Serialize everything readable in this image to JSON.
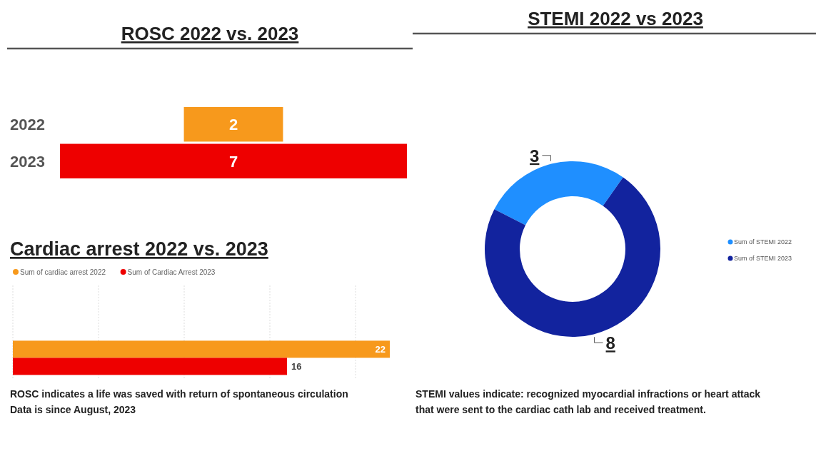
{
  "chart_data": [
    {
      "type": "other",
      "title": "ROSC 2022 vs. 2023",
      "categories": [
        "2022",
        "2023"
      ],
      "values": [
        2,
        7
      ],
      "colors": [
        "#f7991c",
        "#ee0000"
      ],
      "data_labels": true
    },
    {
      "type": "bar",
      "orientation": "horizontal",
      "title": "Cardiac arrest 2022 vs. 2023",
      "categories": [
        null
      ],
      "xlim": [
        0,
        22
      ],
      "xticks": [
        {
          "value": 0,
          "label": null
        },
        {
          "value": 5,
          "label": null
        },
        {
          "value": 10,
          "label": null
        },
        {
          "value": 15,
          "label": null
        },
        {
          "value": 20,
          "label": null
        }
      ],
      "grid": "x",
      "legend": "top left",
      "data_labels": true,
      "series": [
        {
          "name": "Sum of cardiac arrest 2022",
          "color": "#f7991c",
          "values": [
            22
          ]
        },
        {
          "name": "Sum of Cardiac Arrest 2023",
          "color": "#ee0000",
          "values": [
            16
          ]
        }
      ],
      "annotations": [
        "ROSC indicates a life was saved with return of spontaneous circulation",
        "Data is since August, 2023"
      ]
    },
    {
      "type": "donut",
      "title": "STEMI 2022 vs 2023",
      "categories": [
        "Sum of STEMI 2022",
        "Sum of STEMI 2023"
      ],
      "values": [
        3,
        8
      ],
      "colors": [
        "#1f8fff",
        "#12239e"
      ],
      "data_labels": true,
      "legend": "right",
      "annotations": [
        "STEMI values indicate: recognized myocardial infractions or heart attack that were sent to the cardiac cath lab and received treatment."
      ]
    }
  ]
}
